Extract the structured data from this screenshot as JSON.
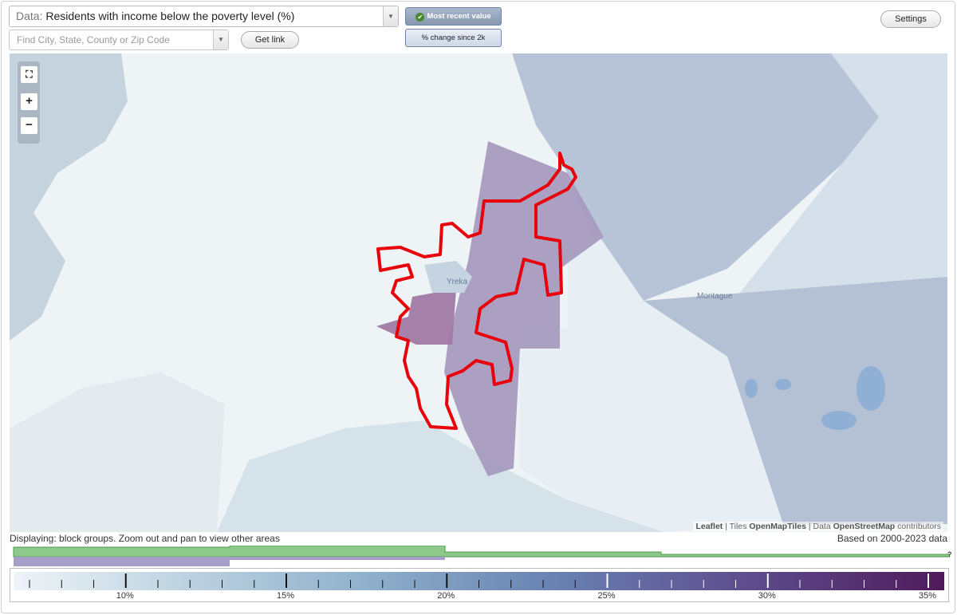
{
  "data_selector": {
    "prefix": "Data:",
    "value": "Residents with income below the poverty level (%)"
  },
  "search": {
    "placeholder": "Find City, State, County or Zip Code"
  },
  "buttons": {
    "get_link": "Get link",
    "settings": "Settings"
  },
  "view_toggle": {
    "active": "Most recent value",
    "inactive": "% change since 2k"
  },
  "zoom": {
    "fit": "⛶",
    "in": "+",
    "out": "−"
  },
  "map": {
    "place_labels": [
      "Yreka",
      "Montague"
    ],
    "attribution": {
      "leaflet": "Leaflet",
      "tiles_prefix": "| Tiles",
      "tiles": "OpenMapTiles",
      "data_prefix": "| Data",
      "data": "OpenStreetMap",
      "contributors": "contributors"
    },
    "boundary_color": "#e8000b"
  },
  "status": {
    "displaying": "Displaying: block groups. Zoom out and pan to view other areas",
    "based_on": "Based on 2000-2023 data"
  },
  "legend": {
    "labels": [
      "10%",
      "15%",
      "20%",
      "25%",
      "30%",
      "35%"
    ],
    "range": [
      7,
      35
    ],
    "gradient_colors": [
      "#eef4f8",
      "#bed3e0",
      "#8fb0cc",
      "#6982b2",
      "#5e4f8f",
      "#4f1a5a"
    ],
    "help": "?"
  },
  "colors": {
    "accent_green": "#8cc98a",
    "accent_purple": "#a49ec9"
  }
}
